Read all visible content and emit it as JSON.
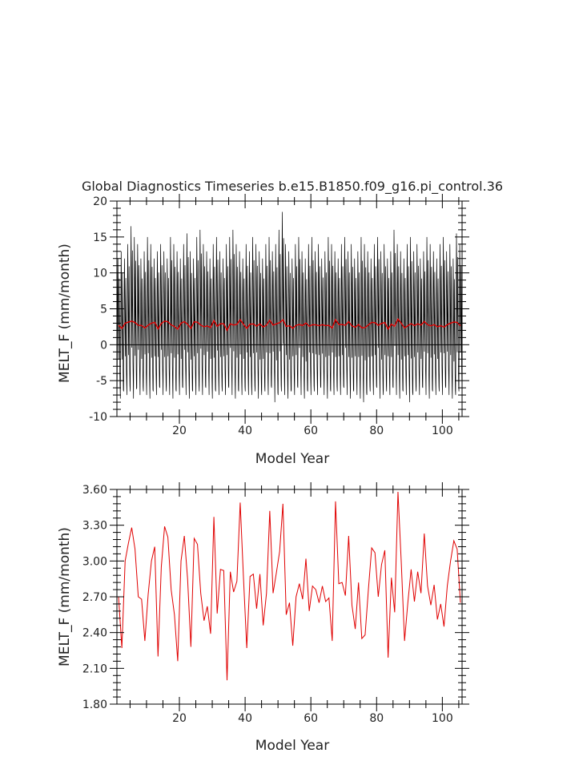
{
  "chart_data": [
    {
      "type": "line",
      "title": "Global Diagnostics Timeseries b.e15.B1850.f09_g16.pi_control.36",
      "xlabel": "Model Year",
      "ylabel": "MELT_F (mm/month)",
      "xlim": [
        1,
        106
      ],
      "ylim": [
        -10,
        20
      ],
      "xticks": [
        "20",
        "40",
        "60",
        "80",
        "100"
      ],
      "yticks": [
        "-10",
        "-5",
        "0",
        "5",
        "10",
        "15",
        "20"
      ],
      "zero_line": true,
      "monthly_pattern_mm_month": [
        -5.5,
        0.5,
        6.0,
        11.5,
        8.5,
        3.0,
        -1.0,
        4.0,
        9.0,
        3.0,
        -2.5,
        -4.5
      ],
      "monthly_peak_by_year_mm_month": [
        12,
        13,
        12,
        14,
        16.5,
        15,
        14,
        12,
        13,
        15,
        14,
        12,
        13,
        14,
        13,
        12,
        15,
        14,
        13,
        12,
        14,
        15.5,
        13,
        12,
        15,
        16,
        14,
        13,
        12,
        14,
        15,
        13,
        12,
        14,
        15,
        16,
        14,
        13,
        12,
        14,
        13,
        15,
        14,
        13,
        12,
        14,
        15,
        13,
        14,
        16,
        18.5,
        14,
        13,
        12,
        14,
        15,
        13,
        12,
        14,
        15,
        13,
        14,
        12,
        13,
        15,
        14,
        13,
        12,
        14,
        15,
        13,
        14,
        12,
        13,
        15,
        14,
        13,
        12,
        14,
        15,
        13,
        14,
        12,
        13,
        16,
        14,
        13,
        12,
        14,
        15,
        13,
        14,
        12,
        13,
        15,
        14,
        13,
        12,
        14,
        15,
        13,
        14,
        12,
        15.5,
        14
      ],
      "monthly_trough_by_year_mm_month": [
        -7,
        -7.5,
        -6.5,
        -7,
        -6.5,
        -7.5,
        -6,
        -7,
        -6.5,
        -7,
        -7.5,
        -6.5,
        -7,
        -6,
        -7,
        -6.5,
        -7,
        -7.5,
        -6.5,
        -7,
        -6,
        -7,
        -7.5,
        -6.5,
        -7,
        -6.5,
        -7,
        -6,
        -7,
        -7.5,
        -6.5,
        -7,
        -6.5,
        -7,
        -6,
        -7,
        -7.5,
        -6.5,
        -7,
        -6.5,
        -7,
        -7,
        -6.5,
        -7.5,
        -7,
        -6.5,
        -7,
        -6,
        -8,
        -7,
        -6.5,
        -7,
        -7.5,
        -6.5,
        -7,
        -6,
        -7,
        -7.5,
        -6.5,
        -7,
        -6.5,
        -7,
        -6,
        -7,
        -7.5,
        -6.5,
        -7,
        -6.5,
        -7,
        -6,
        -7,
        -7.5,
        -6.5,
        -7,
        -7.5,
        -8,
        -7,
        -6.5,
        -7,
        -6,
        -7.5,
        -7,
        -6.5,
        -7,
        -6,
        -7,
        -7.5,
        -6.5,
        -7,
        -8,
        -7,
        -6.5,
        -7,
        -6,
        -7,
        -7.5,
        -6.5,
        -7,
        -6.5,
        -7,
        -6,
        -7,
        -7.5,
        -7,
        -6.5
      ],
      "series": [
        {
          "color": "#000000",
          "resolution": "monthly",
          "note_source": "visual"
        },
        {
          "color": "#e00000",
          "resolution": "annual",
          "values_ref": "annual"
        }
      ]
    },
    {
      "type": "line",
      "xlabel": "Model Year",
      "ylabel": "MELT_F (mm/month)",
      "xlim": [
        1,
        106
      ],
      "ylim": [
        1.8,
        3.6
      ],
      "xticks": [
        "20",
        "40",
        "60",
        "80",
        "100"
      ],
      "yticks": [
        "1.80",
        "2.10",
        "2.40",
        "2.70",
        "3.00",
        "3.30",
        "3.60"
      ],
      "x": [
        1,
        2,
        3,
        4,
        5,
        6,
        7,
        8,
        9,
        10,
        11,
        12,
        13,
        14,
        15,
        16,
        17,
        18,
        19,
        20,
        21,
        22,
        23,
        24,
        25,
        26,
        27,
        28,
        29,
        30,
        31,
        32,
        33,
        34,
        35,
        36,
        37,
        38,
        39,
        40,
        41,
        42,
        43,
        44,
        45,
        46,
        47,
        48,
        49,
        50,
        51,
        52,
        53,
        54,
        55,
        56,
        57,
        58,
        59,
        60,
        61,
        62,
        63,
        64,
        65,
        66,
        67,
        68,
        69,
        70,
        71,
        72,
        73,
        74,
        75,
        76,
        77,
        78,
        79,
        80,
        81,
        82,
        83,
        84,
        85,
        86,
        87,
        88,
        89,
        90,
        91,
        92,
        93,
        94,
        95,
        96,
        97,
        98,
        99,
        100,
        101,
        102,
        103,
        104,
        105
      ],
      "values": [
        2.7,
        2.27,
        3.0,
        3.15,
        3.28,
        3.1,
        2.7,
        2.68,
        2.33,
        2.72,
        3.0,
        3.12,
        2.2,
        2.95,
        3.29,
        3.2,
        2.76,
        2.55,
        2.16,
        3.0,
        3.21,
        2.85,
        2.28,
        3.19,
        3.14,
        2.73,
        2.5,
        2.62,
        2.39,
        3.37,
        2.56,
        2.93,
        2.92,
        2.0,
        2.91,
        2.74,
        2.83,
        3.49,
        2.86,
        2.27,
        2.87,
        2.89,
        2.6,
        2.89,
        2.46,
        2.73,
        3.42,
        2.73,
        2.9,
        3.08,
        3.48,
        2.55,
        2.65,
        2.29,
        2.7,
        2.81,
        2.68,
        3.02,
        2.58,
        2.79,
        2.76,
        2.65,
        2.79,
        2.66,
        2.69,
        2.33,
        3.5,
        2.81,
        2.82,
        2.71,
        3.21,
        2.63,
        2.43,
        2.82,
        2.35,
        2.38,
        2.76,
        3.11,
        3.07,
        2.7,
        2.97,
        3.09,
        2.19,
        2.86,
        2.57,
        3.58,
        2.99,
        2.33,
        2.65,
        2.93,
        2.66,
        2.91,
        2.73,
        3.23,
        2.79,
        2.63,
        2.8,
        2.51,
        2.64,
        2.45,
        2.79,
        3.0,
        3.17,
        3.1,
        2.65
      ],
      "series": [
        {
          "color": "#e00000",
          "resolution": "annual"
        }
      ]
    }
  ]
}
